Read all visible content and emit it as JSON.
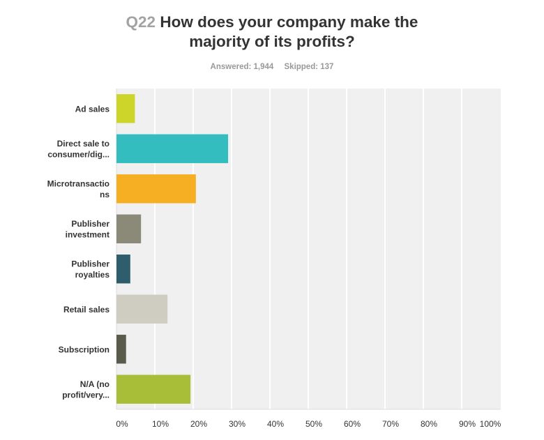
{
  "title": {
    "number": "Q22",
    "line1": "How does your company make the",
    "line2": "majority of its profits?"
  },
  "stats": {
    "answered": "Answered: 1,944",
    "skipped": "Skipped: 137"
  },
  "chart_data": {
    "type": "bar",
    "orientation": "horizontal",
    "title": "Q22 How does your company make the majority of its profits?",
    "categories": [
      "Ad sales",
      "Direct sale to consumer/dig...",
      "Microtransactions",
      "Publisher investment",
      "Publisher royalties",
      "Retail sales",
      "Subscription",
      "N/A (no profit/very..."
    ],
    "category_lines": [
      [
        "Ad sales"
      ],
      [
        "Direct sale to",
        "consumer/dig..."
      ],
      [
        "Microtransactio",
        "ns"
      ],
      [
        "Publisher",
        "investment"
      ],
      [
        "Publisher",
        "royalties"
      ],
      [
        "Retail sales"
      ],
      [
        "Subscription"
      ],
      [
        "N/A (no",
        "profit/very..."
      ]
    ],
    "values": [
      4.8,
      29.1,
      20.7,
      6.4,
      3.6,
      13.3,
      2.5,
      19.3
    ],
    "colors": [
      "#cdd52a",
      "#33bdbf",
      "#f6ae22",
      "#8b8a78",
      "#2e5e6c",
      "#cfcdc1",
      "#5b5b4b",
      "#a8bd38"
    ],
    "xlim": [
      0,
      100
    ],
    "xticks": [
      "0%",
      "10%",
      "20%",
      "30%",
      "40%",
      "50%",
      "60%",
      "70%",
      "80%",
      "90%",
      "100%"
    ],
    "xlabel": "",
    "ylabel": "",
    "grid": true,
    "unit": "%"
  }
}
